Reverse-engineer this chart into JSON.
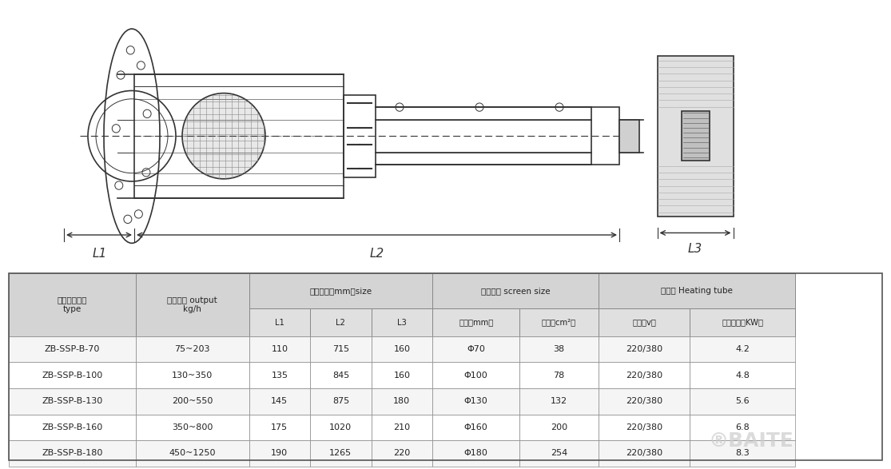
{
  "table_headers_row1": [
    "产品规格型号",
    "适用产量 output",
    "轮廓尺寸（mm）size",
    "",
    "",
    "滤网尺寸 screen size",
    "",
    "加热器 Heating tube",
    ""
  ],
  "table_headers_row2": [
    "type",
    "kg/h",
    "L1",
    "L2",
    "L3",
    "直径（mm）",
    "面积（cm²）",
    "电压（v）",
    "加热功率（KW）"
  ],
  "table_data": [
    [
      "ZB-SSP-B-70",
      "75~203",
      "110",
      "715",
      "160",
      "Φ70",
      "38",
      "220/380",
      "4.2"
    ],
    [
      "ZB-SSP-B-100",
      "130~350",
      "135",
      "845",
      "160",
      "Φ100",
      "78",
      "220/380",
      "4.8"
    ],
    [
      "ZB-SSP-B-130",
      "200~550",
      "145",
      "875",
      "180",
      "Φ130",
      "132",
      "220/380",
      "5.6"
    ],
    [
      "ZB-SSP-B-160",
      "350~800",
      "175",
      "1020",
      "210",
      "Φ160",
      "200",
      "220/380",
      "6.8"
    ],
    [
      "ZB-SSP-B-180",
      "450~1250",
      "190",
      "1265",
      "220",
      "Φ180",
      "254",
      "220/380",
      "8.3"
    ]
  ],
  "col_spans_row1": [
    1,
    1,
    3,
    2,
    2
  ],
  "col_headers_top": [
    "产品规格型号\ntype",
    "适用产量 output\nkg/h",
    "轮廓尺寸（mm）size",
    "滤网尺寸 screen size",
    "加热器 Heating tube"
  ],
  "col_headers_sub": [
    "",
    "",
    "L1",
    "L2",
    "L3",
    "直径（mm）",
    "面积（cm²）",
    "电压（v）",
    "加热功率（KW）"
  ],
  "header_bg": "#d9d9d9",
  "row_bg_odd": "#f2f2f2",
  "row_bg_even": "#ffffff",
  "border_color": "#aaaaaa",
  "text_color": "#333333",
  "drawing_area_bg": "#ffffff",
  "watermark_text": "BAITE",
  "watermark_color": "#cccccc"
}
